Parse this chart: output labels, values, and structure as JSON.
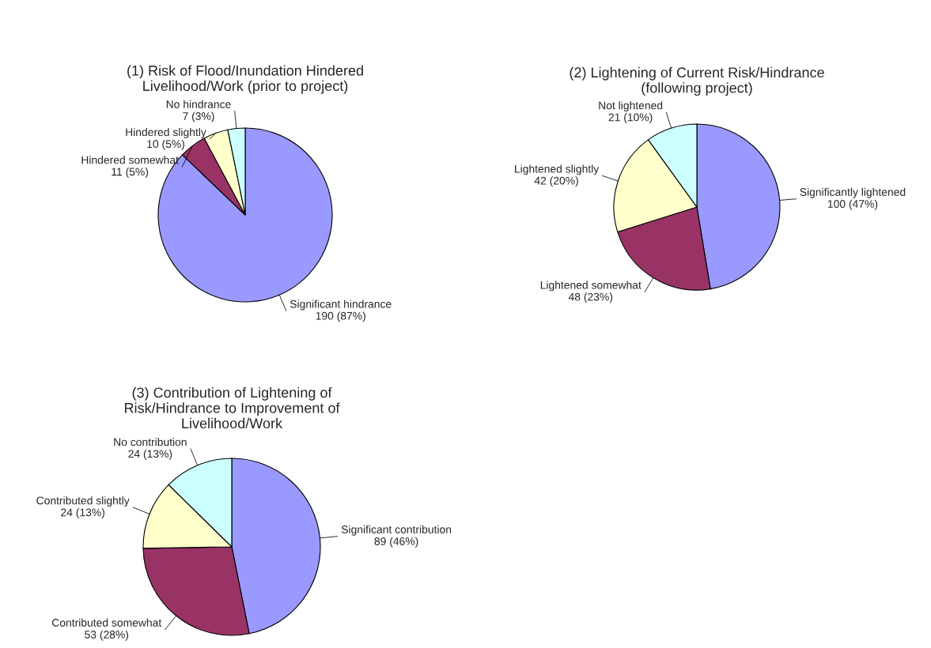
{
  "chart_data": [
    {
      "type": "pie",
      "title": "(1) Risk of Flood/Inundation Hindered Livelihood/Work (prior to project)",
      "categories": [
        "Significant hindrance",
        "Hindered somewhat",
        "Hindered slightly",
        "No hindrance"
      ],
      "values": [
        190,
        11,
        10,
        7
      ],
      "colors": [
        "#9999ff",
        "#993366",
        "#ffffcc",
        "#ccffff"
      ],
      "value_labels": [
        "190 (87%)",
        "11 (5%)",
        "10 (5%)",
        "7 (3%)"
      ]
    },
    {
      "type": "pie",
      "title": "(2) Lightening of Current Risk/Hindrance (following project)",
      "categories": [
        "Significantly lightened",
        "Lightened somewhat",
        "Lightened slightly",
        "Not lightened"
      ],
      "values": [
        100,
        48,
        42,
        21
      ],
      "colors": [
        "#9999ff",
        "#993366",
        "#ffffcc",
        "#ccffff"
      ],
      "value_labels": [
        "100 (47%)",
        "48 (23%)",
        "42 (20%)",
        "21 (10%)"
      ]
    },
    {
      "type": "pie",
      "title": "(3) Contribution of Lightening of Risk/Hindrance to Improvement of Livelihood/Work",
      "categories": [
        "Significant contribution",
        "Contributed somewhat",
        "Contributed slightly",
        "No contribution"
      ],
      "values": [
        89,
        53,
        24,
        24
      ],
      "colors": [
        "#9999ff",
        "#993366",
        "#ffffcc",
        "#ccffff"
      ],
      "value_labels": [
        "89 (46%)",
        "53 (28%)",
        "24 (13%)",
        "24 (13%)"
      ]
    }
  ]
}
